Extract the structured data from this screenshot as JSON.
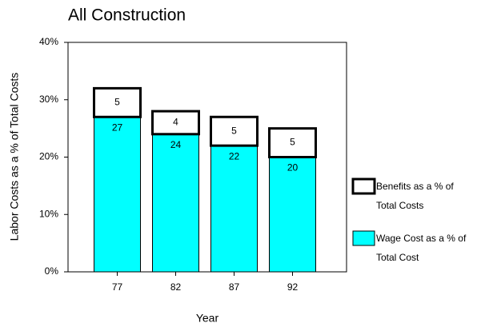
{
  "chart_data": {
    "type": "stacked-bar",
    "title": "All Construction",
    "x_label": "Year",
    "y_label": "Labor Costs as a % of Total Costs",
    "categories": [
      "77",
      "82",
      "87",
      "92"
    ],
    "series": [
      {
        "name": "Wage Cost as a % of Total Cost",
        "color": "#00ffff",
        "values": [
          27,
          24,
          22,
          20
        ]
      },
      {
        "name": "Benefits as a % of Total Costs",
        "color": "#ffffff",
        "values": [
          5,
          4,
          5,
          5
        ]
      }
    ],
    "ylim": [
      0,
      40
    ],
    "yticks": [
      {
        "value": 0,
        "label": "0%"
      },
      {
        "value": 10,
        "label": "10%"
      },
      {
        "value": 20,
        "label": "20%"
      },
      {
        "value": 30,
        "label": "30%"
      },
      {
        "value": 40,
        "label": "40%"
      }
    ]
  }
}
